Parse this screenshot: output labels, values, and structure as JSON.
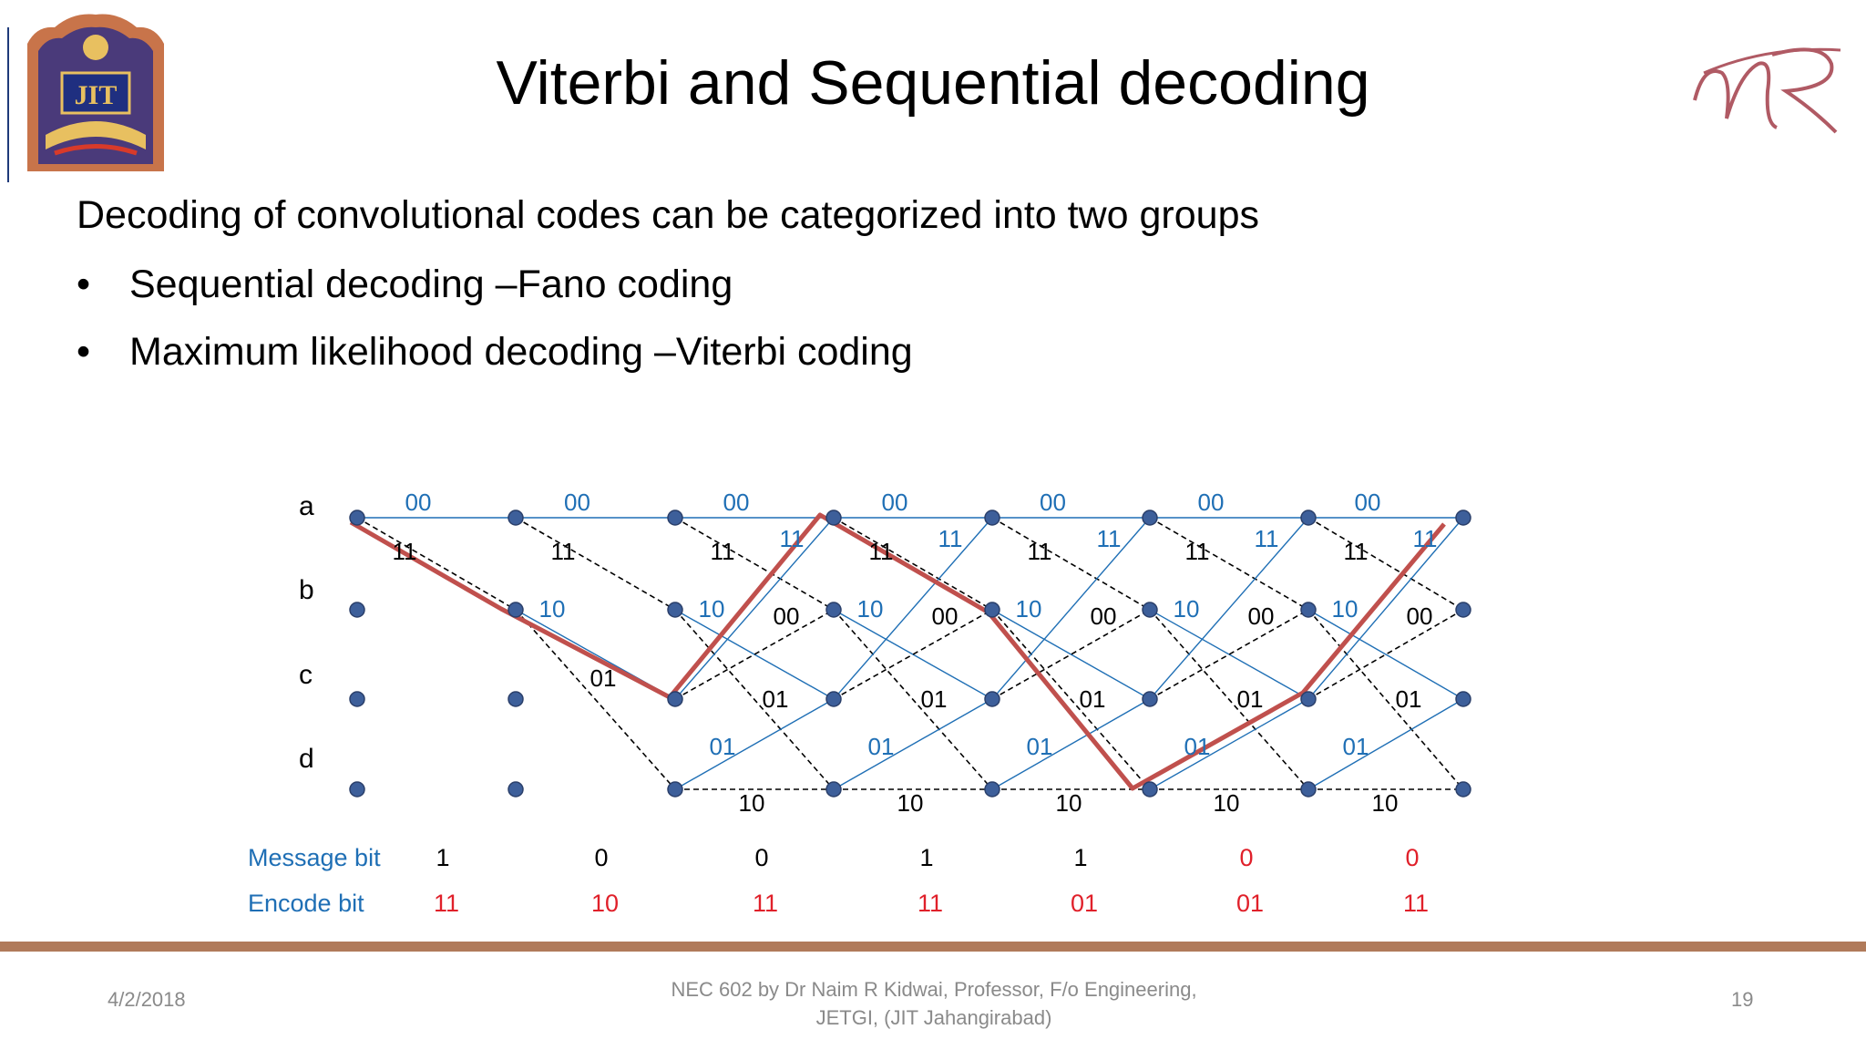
{
  "slide": {
    "title": "Viterbi and Sequential decoding",
    "intro": "Decoding of convolutional codes can be categorized into two groups",
    "bullets": [
      "Sequential decoding –Fano coding",
      "Maximum likelihood decoding –Viterbi coding"
    ]
  },
  "logos": {
    "left_text": "JIT",
    "right_text": "NR"
  },
  "colors": {
    "blue": "#1f6fb5",
    "red": "#e0202a",
    "path": "#c0504d",
    "node": "#3d5f9a",
    "footer_bar": "#b07a5a"
  },
  "trellis": {
    "state_labels": [
      "a",
      "b",
      "c",
      "d"
    ],
    "top_labels": [
      "00",
      "00",
      "00",
      "00",
      "00",
      "00",
      "00"
    ],
    "branch_11_labels": [
      "11",
      "11",
      "11",
      "11",
      "11",
      "11",
      "11"
    ],
    "branch_11_blue_labels": [
      "11",
      "11",
      "11",
      "11",
      "11"
    ],
    "b_to_c_labels": [
      "10",
      "10",
      "10",
      "10",
      "10",
      "10"
    ],
    "c_to_b_labels": [
      "00",
      "00",
      "00",
      "00",
      "00"
    ],
    "b_to_d_labels": [
      "01"
    ],
    "c_to_a_labels": [
      "01",
      "01",
      "01",
      "01",
      "01"
    ],
    "d_to_c_labels": [
      "01",
      "01",
      "01",
      "01",
      "01"
    ],
    "d_to_d_labels": [
      "10",
      "10",
      "10",
      "10",
      "10"
    ],
    "message_label": "Message bit",
    "encode_label": "Encode bit",
    "message_bits": [
      "1",
      "0",
      "0",
      "1",
      "1",
      "0",
      "0"
    ],
    "encode_bits": [
      "11",
      "10",
      "11",
      "11",
      "01",
      "01",
      "11"
    ]
  },
  "footer": {
    "date": "4/2/2018",
    "center_line1": "NEC 602 by Dr Naim R Kidwai, Professor, F/o Engineering,",
    "center_line2": "JETGI, (JIT Jahangirabad)",
    "page": "19"
  }
}
